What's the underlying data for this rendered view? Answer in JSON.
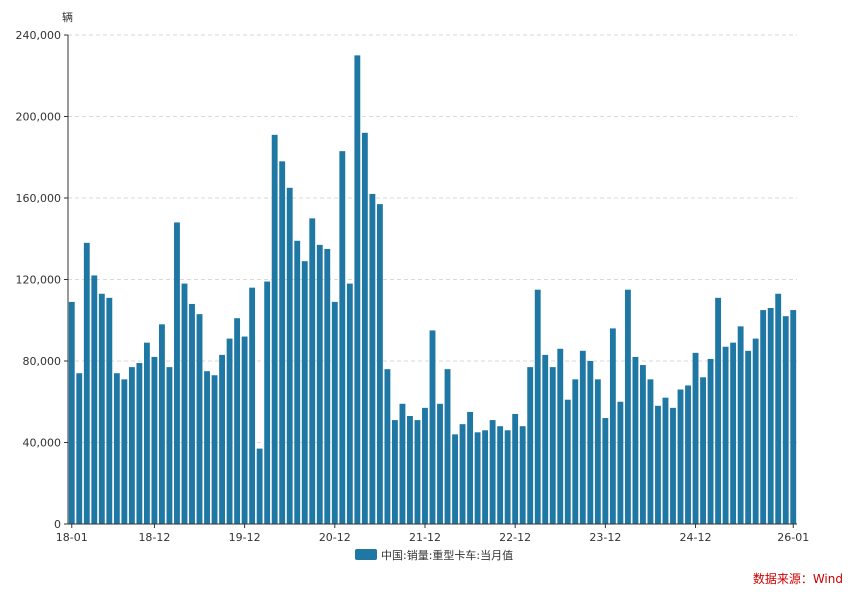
{
  "chart_data": {
    "type": "bar",
    "unit_label": "辆",
    "ylim": [
      0,
      240000
    ],
    "y_ticks": [
      0,
      40000,
      80000,
      120000,
      160000,
      200000,
      240000
    ],
    "y_tick_labels": [
      "0",
      "40,000",
      "80,000",
      "120,000",
      "160,000",
      "200,000",
      "240,000"
    ],
    "x_tick_labels": [
      "18-01",
      "18-12",
      "19-12",
      "20-12",
      "21-12",
      "22-12",
      "23-12",
      "24-12",
      "26-01"
    ],
    "x_tick_index": [
      0,
      11,
      23,
      35,
      47,
      59,
      71,
      83,
      96
    ],
    "grid": true,
    "legend_position": "bottom",
    "bar_color": "#1f77a4",
    "series": [
      {
        "name": "中国:销量:重型卡车:当月值",
        "values": [
          109000,
          74000,
          138000,
          122000,
          113000,
          111000,
          74000,
          71000,
          77000,
          79000,
          89000,
          82000,
          98000,
          77000,
          148000,
          118000,
          108000,
          103000,
          75000,
          73000,
          83000,
          91000,
          101000,
          92000,
          116000,
          37000,
          119000,
          191000,
          178000,
          165000,
          139000,
          129000,
          150000,
          137000,
          135000,
          109000,
          183000,
          118000,
          230000,
          192000,
          162000,
          157000,
          76000,
          51000,
          59000,
          53000,
          51000,
          57000,
          95000,
          59000,
          76000,
          44000,
          49000,
          55000,
          45000,
          46000,
          51000,
          48000,
          46000,
          54000,
          48000,
          77000,
          115000,
          83000,
          77000,
          86000,
          61000,
          71000,
          85000,
          80000,
          71000,
          52000,
          96000,
          60000,
          115000,
          82000,
          78000,
          71000,
          58000,
          62000,
          57000,
          66000,
          68000,
          84000,
          72000,
          81000,
          111000,
          87000,
          89000,
          97000,
          85000,
          91000,
          105000,
          106000,
          113000,
          102000,
          105000
        ]
      }
    ]
  },
  "source_text": "数据来源：Wind"
}
